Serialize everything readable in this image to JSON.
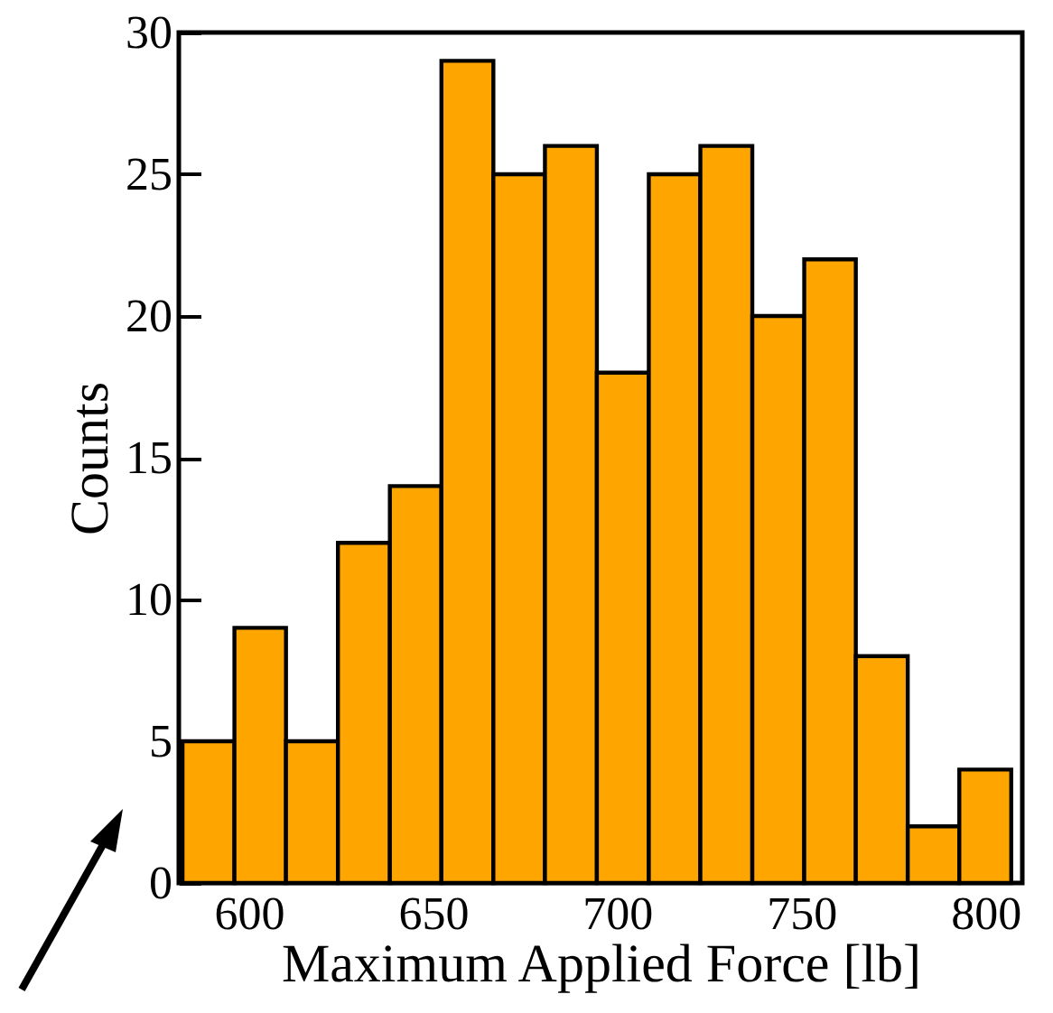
{
  "chart_data": {
    "type": "histogram",
    "xlabel": "Maximum Applied Force [lb]",
    "ylabel": "Counts",
    "bins": [
      582,
      596.1,
      610.1,
      624.2,
      638.3,
      652.3,
      666.4,
      680.4,
      694.5,
      708.6,
      722.6,
      736.7,
      750.8,
      764.8,
      778.9,
      792.9,
      807
    ],
    "values": [
      5,
      9,
      5,
      12,
      14,
      29,
      25,
      26,
      18,
      25,
      26,
      20,
      22,
      8,
      2,
      4
    ],
    "color": "#ffa500",
    "xlim": [
      581,
      810
    ],
    "xticks": [
      600,
      650,
      700,
      750,
      800
    ],
    "ylim": [
      0,
      30
    ],
    "yticks": [
      0,
      5,
      10,
      15,
      20,
      25,
      30
    ],
    "grid": false
  }
}
